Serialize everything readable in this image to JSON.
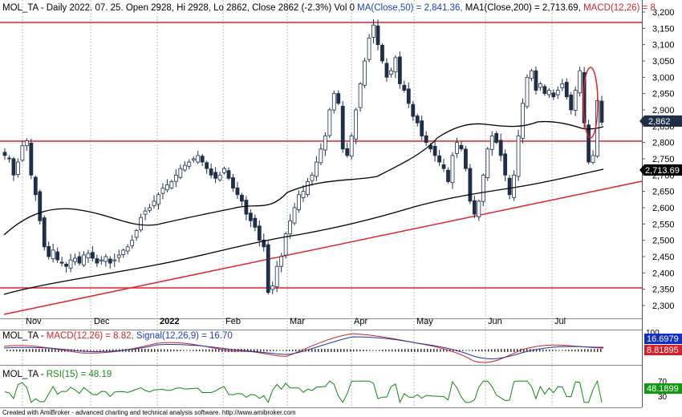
{
  "header": {
    "main_prefix": "MOL_TA - Daily 2022. 07. 25. Open 2928, Hi 2928, Lo 2862, Close 2862 (-2.3%) Vol 0 ",
    "ma50_text": "MA(Close,50) = 2,841.36,",
    "ma200_text": " MA1(Close,200) = 2,713.69,",
    "macd_overlay_text": " MACD(12,26) = 8",
    "macd_prefix": "MOL_TA - ",
    "macd_text": "MACD(12,26) = 8.82,",
    "signal_text": " Signal(12,26,9) = 16.70",
    "rsi_prefix": "MOL_TA - ",
    "rsi_text": "RSI(15) = 48.19",
    "footer": "Created with AmiBroker - advanced charting and technical analysis software. http://www.amibroker.com"
  },
  "colors": {
    "background": "#ffffff",
    "candle": "#1f2f48",
    "ma": "#000000",
    "annotation_red": "#e0242c",
    "macd_line": "#cc2222",
    "signal_line": "#2233aa",
    "rsi_line": "#118811",
    "text_blue": "#1a3fbf",
    "text_red": "#d4242c",
    "text_green": "#1a8a1a",
    "badge_navy": "#1f2f48",
    "badge_black": "#000000",
    "badge_blue": "#1130c8",
    "badge_red": "#d81e28",
    "badge_green": "#119911"
  },
  "chart_data": [
    {
      "type": "candlestick",
      "title": "MOL_TA - Daily",
      "x_labels": [
        "Nov",
        "Dec",
        "2022",
        "Feb",
        "Mar",
        "Apr",
        "May",
        "Jun",
        "Jul"
      ],
      "y_ticks": [
        2300,
        2350,
        2400,
        2450,
        2500,
        2550,
        2600,
        2650,
        2700,
        2750,
        2800,
        2850,
        2900,
        2950,
        3000,
        3050,
        3100,
        3150,
        3200
      ],
      "y_tick_labels": [
        "2,300",
        "2,350",
        "2,400",
        "2,450",
        "2,500",
        "2,550",
        "2,600",
        "2,650",
        "2,700",
        "2,750",
        "2,800",
        "2,850",
        "2,900",
        "2,950",
        "3,000",
        "3,050",
        "3,100",
        "3,150",
        "3,200"
      ],
      "ylim": [
        2280,
        3210
      ],
      "last_bar": {
        "date": "2022. 07. 25.",
        "open": 2928,
        "high": 2928,
        "low": 2862,
        "close": 2862,
        "change_pct": -2.3
      },
      "price_badge": "2,862",
      "ma200_badge": "2,713.69",
      "closes": [
        2760,
        2750,
        2700,
        2740,
        2790,
        2805,
        2700,
        2640,
        2560,
        2480,
        2450,
        2470,
        2440,
        2430,
        2420,
        2440,
        2445,
        2430,
        2455,
        2460,
        2445,
        2430,
        2440,
        2450,
        2430,
        2440,
        2455,
        2470,
        2480,
        2500,
        2530,
        2570,
        2590,
        2600,
        2620,
        2640,
        2660,
        2670,
        2680,
        2700,
        2720,
        2730,
        2740,
        2750,
        2760,
        2740,
        2720,
        2700,
        2690,
        2700,
        2720,
        2690,
        2660,
        2640,
        2620,
        2580,
        2560,
        2540,
        2500,
        2480,
        2340,
        2360,
        2420,
        2450,
        2520,
        2560,
        2600,
        2640,
        2650,
        2680,
        2700,
        2740,
        2780,
        2820,
        2900,
        2950,
        2920,
        2780,
        2760,
        2820,
        2900,
        2980,
        3050,
        3120,
        3160,
        3100,
        3050,
        3000,
        3020,
        3060,
        2980,
        2960,
        2920,
        2880,
        2860,
        2820,
        2800,
        2780,
        2760,
        2740,
        2720,
        2680,
        2760,
        2800,
        2780,
        2720,
        2620,
        2580,
        2620,
        2700,
        2780,
        2820,
        2800,
        2760,
        2700,
        2640,
        2700,
        2820,
        2920,
        3000,
        3020,
        2960,
        2980,
        2950,
        2960,
        2940,
        2960,
        2980,
        2940,
        2900,
        2960,
        3020,
        2860,
        2740,
        2760,
        2928,
        2862
      ],
      "annotations": {
        "resistance_hi": 3165,
        "resistance_mid": 2805,
        "support_lo": 2355,
        "trendline": {
          "from": [
            0,
            2270
          ],
          "to": [
            132,
            2680
          ]
        }
      }
    },
    {
      "type": "line",
      "title": "MACD(12,26)",
      "series": [
        {
          "name": "MACD(12,26)",
          "last": 8.82
        },
        {
          "name": "Signal(12,26,9)",
          "last": 16.7
        }
      ],
      "y_ticks": [
        100
      ],
      "badges": [
        "16.6979",
        "8.81895"
      ]
    },
    {
      "type": "line",
      "title": "RSI(15)",
      "series": [
        {
          "name": "RSI(15)",
          "last": 48.19
        }
      ],
      "y_ticks": [
        70,
        30
      ],
      "badges": [
        "48.1899"
      ]
    }
  ]
}
